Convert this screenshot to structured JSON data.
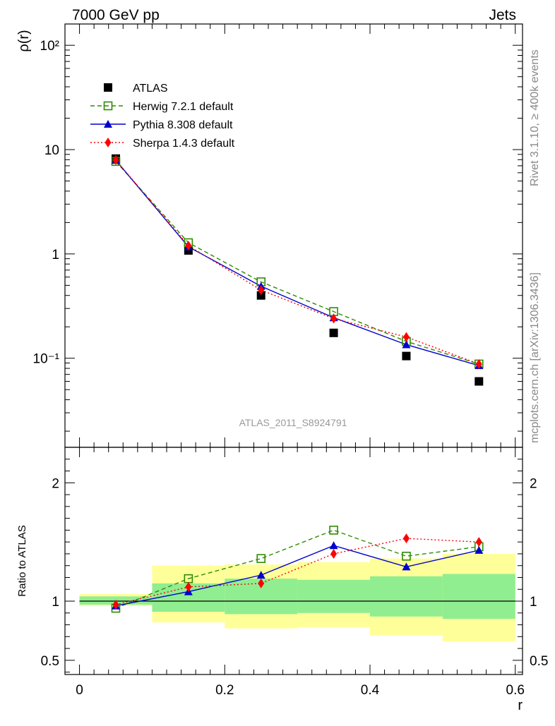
{
  "header": {
    "left": "7000 GeV pp",
    "right": "Jets"
  },
  "side_labels": {
    "rivet": "Rivet 3.1.10, ≥ 400k events",
    "mcplots": "mcplots.cern.ch [arXiv:1306.3436]"
  },
  "watermark": "ATLAS_2011_S8924791",
  "colors": {
    "atlas": "#000000",
    "herwig": "#2e8b00",
    "pythia": "#0000cc",
    "sherpa": "#ff0000",
    "band_outer": "#ffff99",
    "band_inner": "#90ee90"
  },
  "chart_data": [
    {
      "type": "scatter",
      "title": "",
      "xlabel": "r",
      "ylabel": "ρ(r)",
      "yscale": "log",
      "xlim": [
        -0.02,
        0.61
      ],
      "ylim": [
        0.014,
        160
      ],
      "ytick_labels": [
        "10⁻¹",
        "1",
        "10",
        "10²"
      ],
      "ytick_values": [
        0.1,
        1,
        10,
        100
      ],
      "x": [
        0.05,
        0.15,
        0.25,
        0.35,
        0.45,
        0.55
      ],
      "series": [
        {
          "name": "ATLAS",
          "style": "square-filled",
          "values": [
            8.2,
            1.08,
            0.4,
            0.175,
            0.105,
            0.06
          ]
        },
        {
          "name": "Herwig 7.2.1 default",
          "style": "square-open-dashed",
          "values": [
            7.7,
            1.28,
            0.54,
            0.28,
            0.145,
            0.088
          ]
        },
        {
          "name": "Pythia 8.308 default",
          "style": "triangle-solid",
          "values": [
            7.9,
            1.17,
            0.49,
            0.245,
            0.135,
            0.085
          ]
        },
        {
          "name": "Sherpa 1.4.3 default",
          "style": "diamond-dotted",
          "values": [
            7.95,
            1.2,
            0.45,
            0.24,
            0.16,
            0.088
          ]
        }
      ]
    },
    {
      "type": "scatter",
      "title": "",
      "xlabel": "r",
      "ylabel": "Ratio to ATLAS",
      "xlim": [
        -0.02,
        0.61
      ],
      "ylim": [
        0.38,
        2.3
      ],
      "xtick_labels": [
        "0",
        "0.2",
        "0.4",
        "0.6"
      ],
      "xtick_values": [
        0,
        0.2,
        0.4,
        0.6
      ],
      "ytick_labels": [
        "0.5",
        "1",
        "2"
      ],
      "ytick_values": [
        0.5,
        1,
        2
      ],
      "reference_line": 1,
      "bands": {
        "bin_edges": [
          0.0,
          0.1,
          0.2,
          0.3,
          0.4,
          0.5,
          0.6
        ],
        "outer_low": [
          0.96,
          0.82,
          0.77,
          0.78,
          0.71,
          0.66
        ],
        "outer_high": [
          1.06,
          1.3,
          1.31,
          1.33,
          1.36,
          1.4
        ],
        "inner_low": [
          0.97,
          0.91,
          0.89,
          0.9,
          0.87,
          0.85
        ],
        "inner_high": [
          1.04,
          1.15,
          1.19,
          1.18,
          1.21,
          1.23
        ]
      },
      "x": [
        0.05,
        0.15,
        0.25,
        0.35,
        0.45,
        0.55
      ],
      "series": [
        {
          "name": "Herwig 7.2.1 default",
          "values": [
            0.94,
            1.19,
            1.36,
            1.6,
            1.38,
            1.46
          ]
        },
        {
          "name": "Pythia 8.308 default",
          "values": [
            0.96,
            1.08,
            1.22,
            1.47,
            1.29,
            1.43
          ]
        },
        {
          "name": "Sherpa 1.4.3 default",
          "values": [
            0.97,
            1.12,
            1.15,
            1.4,
            1.53,
            1.5
          ]
        }
      ]
    }
  ]
}
